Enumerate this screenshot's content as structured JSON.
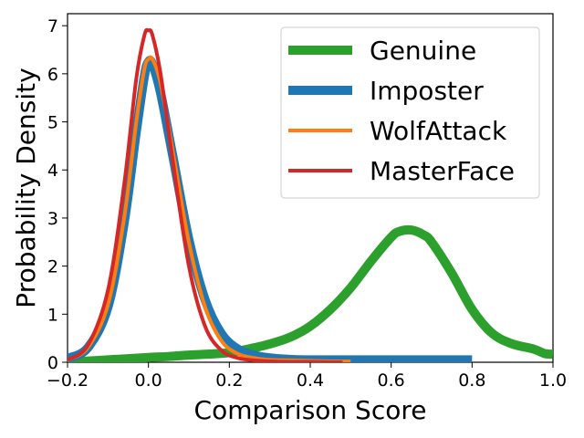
{
  "chart_data": {
    "type": "line",
    "xlabel": "Comparison Score",
    "ylabel": "Probability Density",
    "xlim": [
      -0.2,
      1.0
    ],
    "ylim": [
      0,
      7.25
    ],
    "xticks": [
      -0.2,
      0.0,
      0.2,
      0.4,
      0.6,
      0.8,
      1.0
    ],
    "xtick_labels": [
      "−0.2",
      "0.0",
      "0.2",
      "0.4",
      "0.6",
      "0.8",
      "1.0"
    ],
    "yticks": [
      0,
      1,
      2,
      3,
      4,
      5,
      6,
      7
    ],
    "ytick_labels": [
      "0",
      "1",
      "2",
      "3",
      "4",
      "5",
      "6",
      "7"
    ],
    "grid": false,
    "legend_position": "top-right",
    "series": [
      {
        "name": "Genuine",
        "color": "#2ca02c",
        "line": "thick",
        "x": [
          -0.2,
          -0.1,
          0.0,
          0.05,
          0.1,
          0.15,
          0.2,
          0.25,
          0.3,
          0.35,
          0.4,
          0.45,
          0.5,
          0.55,
          0.6,
          0.62,
          0.65,
          0.68,
          0.7,
          0.75,
          0.8,
          0.85,
          0.9,
          0.95,
          0.98,
          1.0
        ],
        "y": [
          0.0,
          0.05,
          0.1,
          0.12,
          0.15,
          0.17,
          0.2,
          0.28,
          0.38,
          0.52,
          0.75,
          1.1,
          1.55,
          2.1,
          2.6,
          2.72,
          2.75,
          2.65,
          2.5,
          1.85,
          1.1,
          0.6,
          0.38,
          0.28,
          0.18,
          0.17
        ]
      },
      {
        "name": "Imposter",
        "color": "#1f77b4",
        "line": "thick",
        "x": [
          -0.2,
          -0.15,
          -0.1,
          -0.06,
          -0.03,
          -0.01,
          0.0,
          0.01,
          0.03,
          0.06,
          0.1,
          0.14,
          0.18,
          0.22,
          0.26,
          0.3,
          0.35,
          0.4,
          0.5,
          0.6,
          0.7,
          0.8
        ],
        "y": [
          0.08,
          0.3,
          1.15,
          2.9,
          4.8,
          5.95,
          6.25,
          6.2,
          5.6,
          4.3,
          2.55,
          1.3,
          0.6,
          0.28,
          0.15,
          0.09,
          0.06,
          0.05,
          0.05,
          0.05,
          0.05,
          0.05
        ]
      },
      {
        "name": "WolfAttack",
        "color": "#ff7f0e",
        "line": "thin",
        "x": [
          -0.2,
          -0.15,
          -0.1,
          -0.06,
          -0.03,
          -0.01,
          0.0,
          0.01,
          0.03,
          0.06,
          0.1,
          0.14,
          0.18,
          0.22,
          0.26,
          0.3,
          0.35,
          0.4,
          0.45,
          0.5
        ],
        "y": [
          0.05,
          0.3,
          1.2,
          3.0,
          5.0,
          6.1,
          6.3,
          6.3,
          5.8,
          4.4,
          2.5,
          1.15,
          0.45,
          0.18,
          0.09,
          0.05,
          0.04,
          0.03,
          0.02,
          0.02
        ]
      },
      {
        "name": "MasterFace",
        "color": "#d62728",
        "line": "thin",
        "x": [
          -0.2,
          -0.15,
          -0.1,
          -0.06,
          -0.03,
          -0.01,
          0.0,
          0.01,
          0.03,
          0.06,
          0.1,
          0.14,
          0.18,
          0.22,
          0.26,
          0.3,
          0.35,
          0.4,
          0.45,
          0.48
        ],
        "y": [
          0.05,
          0.35,
          1.5,
          3.7,
          5.9,
          6.8,
          6.9,
          6.8,
          6.0,
          4.2,
          2.0,
          0.75,
          0.25,
          0.09,
          0.04,
          0.02,
          0.01,
          0.01,
          0.0,
          0.0
        ]
      }
    ]
  }
}
